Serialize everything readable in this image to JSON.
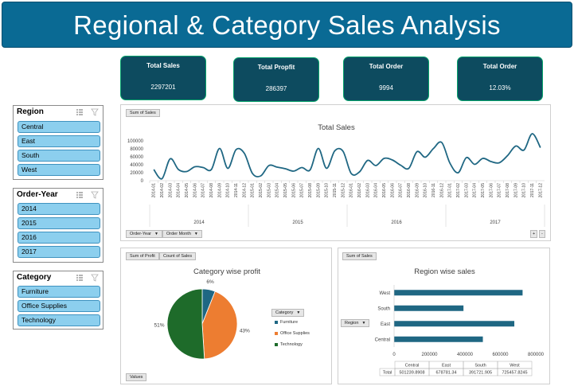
{
  "header": {
    "title": "Regional & Category Sales Analysis"
  },
  "kpis": [
    {
      "label": "Total Sales",
      "value": "2297201"
    },
    {
      "label": "Total Propfit",
      "value": "286397"
    },
    {
      "label": "Total Order",
      "value": "9994"
    },
    {
      "label": "Total Order",
      "value": "12.03%"
    }
  ],
  "slicers": {
    "region": {
      "title": "Region",
      "items": [
        "Central",
        "East",
        "South",
        "West"
      ]
    },
    "order_year": {
      "title": "Order-Year",
      "items": [
        "2014",
        "2015",
        "2016",
        "2017"
      ]
    },
    "category": {
      "title": "Category",
      "items": [
        "Furniture",
        "Office Supplies",
        "Technology"
      ]
    }
  },
  "line_panel": {
    "value_button": "Sum of Sales",
    "axis_buttons": [
      "Order-Year",
      "Order Month"
    ],
    "zoom_buttons": [
      "+",
      "-"
    ]
  },
  "pie_panel": {
    "value_buttons": [
      "Sum of Profit",
      "Count of Sales"
    ],
    "legend_button": "Category",
    "values_button": "Values"
  },
  "bar_panel": {
    "value_button": "Sum of Sales",
    "axis_button": "Region",
    "table": {
      "headers": [
        "Central",
        "East",
        "South",
        "West"
      ],
      "row_label": "Total",
      "values": [
        "501239.8908",
        "678781.34",
        "391721.905",
        "725457.8245"
      ]
    }
  },
  "colors": {
    "title_bar": "#0a6a94",
    "kpi_bg": "#0d4b5f",
    "kpi_border": "#06a36b",
    "slicer_item": "#8ccfee",
    "series": "#1f6783",
    "furniture": "#1f6783",
    "office_supplies": "#ed7d31",
    "technology": "#1e6b2a"
  },
  "icons": {
    "multi_select": "multi-select-icon",
    "clear_filter": "clear-filter-icon"
  },
  "chart_data": [
    {
      "type": "line",
      "title": "Total Sales",
      "years": [
        "2014",
        "2015",
        "2016",
        "2017"
      ],
      "categories": [
        "2014-01",
        "2014-02",
        "2014-03",
        "2014-04",
        "2014-05",
        "2014-06",
        "2014-07",
        "2014-08",
        "2014-09",
        "2014-10",
        "2014-11",
        "2014-12",
        "2015-01",
        "2015-02",
        "2015-03",
        "2015-04",
        "2015-05",
        "2015-06",
        "2015-07",
        "2015-08",
        "2015-09",
        "2015-10",
        "2015-11",
        "2015-12",
        "2016-01",
        "2016-02",
        "2016-03",
        "2016-04",
        "2016-05",
        "2016-06",
        "2016-07",
        "2016-08",
        "2016-09",
        "2016-10",
        "2016-11",
        "2016-12",
        "2017-01",
        "2017-02",
        "2017-03",
        "2017-04",
        "2017-05",
        "2017-06",
        "2017-07",
        "2017-08",
        "2017-09",
        "2017-10",
        "2017-11",
        "2017-12"
      ],
      "values": [
        28000,
        5000,
        55000,
        28000,
        23000,
        35000,
        33000,
        28000,
        81000,
        31000,
        78000,
        69000,
        18000,
        12000,
        38000,
        34000,
        30000,
        24000,
        33000,
        27000,
        81000,
        31000,
        75000,
        74000,
        18000,
        22000,
        51000,
        38000,
        56000,
        52000,
        39000,
        31000,
        73000,
        59000,
        81000,
        96000,
        44000,
        20000,
        58000,
        41000,
        56000,
        48000,
        45000,
        63000,
        87000,
        77000,
        118000,
        83000
      ],
      "ylim": [
        0,
        100000
      ],
      "yticks": [
        "0",
        "20000",
        "40000",
        "60000",
        "80000",
        "100000"
      ]
    },
    {
      "type": "pie",
      "title": "Category wise profit",
      "categories": [
        "Furniture",
        "Office Supplies",
        "Technology"
      ],
      "values": [
        6,
        43,
        51
      ],
      "labels": [
        "6%",
        "43%",
        "51%"
      ]
    },
    {
      "type": "bar",
      "title": "Region wise sales",
      "categories": [
        "Central",
        "East",
        "South",
        "West"
      ],
      "values": [
        501239.8908,
        678781.34,
        391721.905,
        725457.8245
      ],
      "xlim": [
        0,
        800000
      ],
      "xticks": [
        "0",
        "200000",
        "400000",
        "600000",
        "800000"
      ]
    }
  ]
}
